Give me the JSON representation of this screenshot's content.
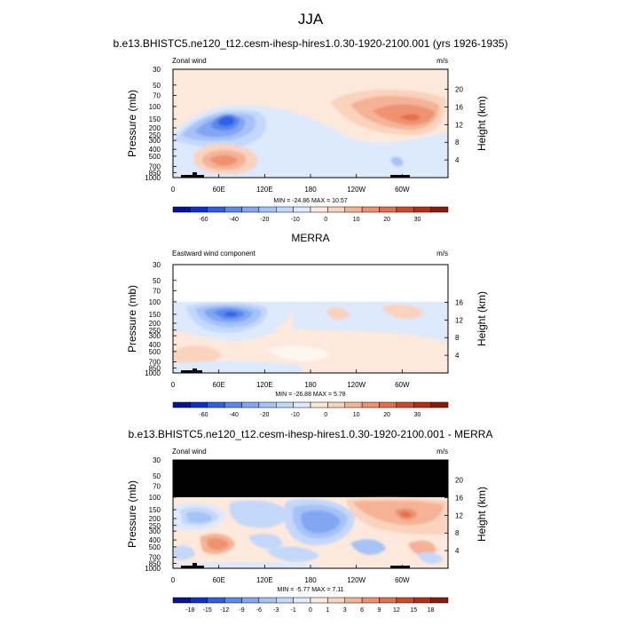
{
  "figure": {
    "title": "JJA"
  },
  "panels": [
    {
      "title": "b.e13.BHISTC5.ne120_t12.cesm-ihesp-hires1.0.30-1920-2100.001 (yrs 1926-1935)",
      "left_label": "Zonal wind",
      "right_label": "m/s",
      "stats": "MIN = -24.86  MAX = 10.57",
      "height_ticks": [
        "20",
        "16",
        "12",
        "8",
        "4"
      ]
    },
    {
      "title": "MERRA",
      "left_label": "Eastward wind component",
      "right_label": "m/s",
      "stats": "MIN = -26.88  MAX =  5.78",
      "height_ticks": [
        "16",
        "12",
        "8",
        "4"
      ]
    },
    {
      "title": "b.e13.BHISTC5.ne120_t12.cesm-ihesp-hires1.0.30-1920-2100.001 - MERRA",
      "left_label": "Zonal wind",
      "right_label": "m/s",
      "stats": "MIN = -5.77  MAX =  7.11",
      "height_ticks": [
        "20",
        "16",
        "12",
        "8",
        "4"
      ]
    }
  ],
  "axes": {
    "ylabel": "Pressure (mb)",
    "y2label": "Height (km)",
    "pressure_ticks": [
      "30",
      "50",
      "70",
      "100",
      "150",
      "200",
      "250",
      "300",
      "400",
      "500",
      "700",
      "850",
      "1000"
    ],
    "lon_ticks": [
      "0",
      "60E",
      "120E",
      "180",
      "120W",
      "60W"
    ]
  },
  "colorbars": [
    {
      "labels": [
        "-60",
        "-40",
        "-20",
        "-10",
        "0",
        "10",
        "20",
        "30"
      ],
      "colors": [
        "#08119a",
        "#0c2fd2",
        "#2d60e8",
        "#5a88ec",
        "#82a6f2",
        "#a6c2f7",
        "#c3d8fb",
        "#dde9fc",
        "#fde9dc",
        "#fad3bd",
        "#f5b296",
        "#ee9270",
        "#e3704d",
        "#d04a2a",
        "#b82d12",
        "#8a1e0a"
      ]
    },
    {
      "labels": [
        "-60",
        "-40",
        "-20",
        "-10",
        "0",
        "10",
        "20",
        "30"
      ],
      "colors": [
        "#08119a",
        "#0c2fd2",
        "#2d60e8",
        "#5a88ec",
        "#82a6f2",
        "#a6c2f7",
        "#c3d8fb",
        "#dde9fc",
        "#fde9dc",
        "#fad3bd",
        "#f5b296",
        "#ee9270",
        "#e3704d",
        "#d04a2a",
        "#b82d12",
        "#8a1e0a"
      ]
    },
    {
      "labels": [
        "-18",
        "-15",
        "-12",
        "-9",
        "-6",
        "-3",
        "-1",
        "0",
        "1",
        "3",
        "6",
        "9",
        "12",
        "15",
        "18"
      ],
      "colors": [
        "#08119a",
        "#0c2fd2",
        "#2d60e8",
        "#5a88ec",
        "#82a6f2",
        "#a6c2f7",
        "#c3d8fb",
        "#dde9fc",
        "#fde9dc",
        "#fad3bd",
        "#f5b296",
        "#ee9270",
        "#e3704d",
        "#d04a2a",
        "#b82d12",
        "#8a1e0a"
      ]
    }
  ],
  "chart_data": [
    {
      "type": "heatmap",
      "title": "b.e13.BHISTC5.ne120_t12.cesm-ihesp-hires1.0.30-1920-2100.001 (yrs 1926-1935)",
      "variable": "Zonal wind",
      "units": "m/s",
      "xlabel": "",
      "ylabel": "Pressure (mb)",
      "y2label": "Height (km)",
      "x_ticks": [
        "0",
        "60E",
        "120E",
        "180",
        "120W",
        "60W"
      ],
      "y_ticks": [
        30,
        50,
        70,
        100,
        150,
        200,
        250,
        300,
        400,
        500,
        700,
        850,
        1000
      ],
      "levels": [
        -60,
        -40,
        -20,
        -10,
        0,
        10,
        20,
        30
      ],
      "min": -24.86,
      "max": 10.57
    },
    {
      "type": "heatmap",
      "title": "MERRA",
      "variable": "Eastward wind component",
      "units": "m/s",
      "xlabel": "",
      "ylabel": "Pressure (mb)",
      "y2label": "Height (km)",
      "x_ticks": [
        "0",
        "60E",
        "120E",
        "180",
        "120W",
        "60W"
      ],
      "y_ticks": [
        30,
        50,
        70,
        100,
        150,
        200,
        250,
        300,
        400,
        500,
        700,
        850,
        1000
      ],
      "levels": [
        -60,
        -40,
        -20,
        -10,
        0,
        10,
        20,
        30
      ],
      "min": -26.88,
      "max": 5.78
    },
    {
      "type": "heatmap",
      "title": "b.e13.BHISTC5.ne120_t12.cesm-ihesp-hires1.0.30-1920-2100.001 - MERRA",
      "variable": "Zonal wind",
      "units": "m/s",
      "xlabel": "",
      "ylabel": "Pressure (mb)",
      "y2label": "Height (km)",
      "x_ticks": [
        "0",
        "60E",
        "120E",
        "180",
        "120W",
        "60W"
      ],
      "y_ticks": [
        30,
        50,
        70,
        100,
        150,
        200,
        250,
        300,
        400,
        500,
        700,
        850,
        1000
      ],
      "levels": [
        -18,
        -15,
        -12,
        -9,
        -6,
        -3,
        -1,
        0,
        1,
        3,
        6,
        9,
        12,
        15,
        18
      ],
      "min": -5.77,
      "max": 7.11
    }
  ]
}
